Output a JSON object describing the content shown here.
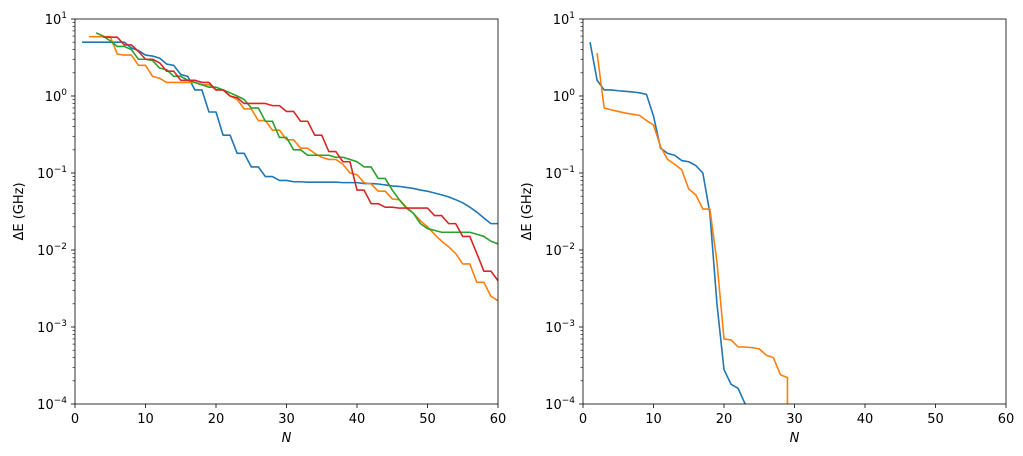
{
  "chart_data": [
    {
      "type": "line",
      "xlabel": "N",
      "ylabel": "ΔE (GHz)",
      "xlim": [
        0,
        60
      ],
      "ylim": [
        0.0001,
        10
      ],
      "yscale": "log",
      "xticks": [
        "0",
        "10",
        "20",
        "30",
        "40",
        "50",
        "60"
      ],
      "yticks": [
        {
          "value": 0.0001,
          "base": "10",
          "exp": "−4"
        },
        {
          "value": 0.001,
          "base": "10",
          "exp": "−3"
        },
        {
          "value": 0.01,
          "base": "10",
          "exp": "−2"
        },
        {
          "value": 0.1,
          "base": "10",
          "exp": "−1"
        },
        {
          "value": 1,
          "base": "10",
          "exp": "0"
        },
        {
          "value": 10,
          "base": "10",
          "exp": "1"
        }
      ],
      "grid": false,
      "series": [
        {
          "color": "#1f77b4",
          "x": [
            1,
            7,
            8,
            9,
            10,
            11,
            12,
            13,
            14,
            15,
            16,
            17,
            18,
            19,
            20,
            21,
            22,
            23,
            24,
            25,
            26,
            27,
            28,
            29,
            30,
            31,
            32,
            33,
            34,
            35,
            36,
            37,
            38,
            39,
            40,
            41,
            42,
            43,
            44,
            45,
            46,
            47,
            48,
            49,
            50,
            51,
            52,
            53,
            54,
            55,
            56,
            57,
            58,
            59,
            60
          ],
          "y": [
            5.0,
            5.0,
            4.2,
            3.9,
            3.4,
            3.3,
            3.1,
            2.6,
            2.5,
            1.9,
            1.8,
            1.2,
            1.2,
            0.62,
            0.62,
            0.31,
            0.31,
            0.18,
            0.18,
            0.12,
            0.12,
            0.09,
            0.09,
            0.08,
            0.08,
            0.077,
            0.077,
            0.076,
            0.076,
            0.076,
            0.076,
            0.076,
            0.075,
            0.075,
            0.075,
            0.073,
            0.073,
            0.072,
            0.07,
            0.068,
            0.067,
            0.065,
            0.063,
            0.06,
            0.058,
            0.055,
            0.052,
            0.049,
            0.045,
            0.041,
            0.036,
            0.031,
            0.026,
            0.022,
            0.022
          ]
        },
        {
          "color": "#ff7f0e",
          "x": [
            2,
            5,
            6,
            7,
            8,
            9,
            10,
            11,
            12,
            13,
            14,
            15,
            16,
            17,
            18,
            19,
            20,
            21,
            22,
            23,
            24,
            25,
            26,
            27,
            28,
            29,
            30,
            31,
            32,
            33,
            34,
            35,
            36,
            37,
            38,
            39,
            40,
            41,
            42,
            43,
            44,
            45,
            46,
            47,
            48,
            49,
            50,
            51,
            52,
            53,
            54,
            55,
            56,
            57,
            58,
            59,
            60
          ],
          "y": [
            5.9,
            5.9,
            3.5,
            3.4,
            3.4,
            2.5,
            2.5,
            1.8,
            1.7,
            1.5,
            1.5,
            1.5,
            1.5,
            1.5,
            1.4,
            1.4,
            1.2,
            1.2,
            1.0,
            0.9,
            0.68,
            0.68,
            0.48,
            0.48,
            0.36,
            0.36,
            0.27,
            0.27,
            0.21,
            0.21,
            0.18,
            0.16,
            0.15,
            0.15,
            0.13,
            0.1,
            0.095,
            0.075,
            0.072,
            0.058,
            0.058,
            0.046,
            0.045,
            0.036,
            0.03,
            0.024,
            0.02,
            0.016,
            0.013,
            0.011,
            0.009,
            0.0066,
            0.0066,
            0.0038,
            0.0038,
            0.0025,
            0.0022
          ]
        },
        {
          "color": "#2ca02c",
          "x": [
            3,
            4,
            5,
            6,
            7,
            8,
            9,
            10,
            11,
            12,
            13,
            14,
            15,
            16,
            17,
            18,
            19,
            20,
            21,
            22,
            23,
            24,
            25,
            26,
            27,
            28,
            29,
            30,
            31,
            32,
            33,
            34,
            35,
            36,
            37,
            38,
            39,
            40,
            41,
            42,
            43,
            44,
            45,
            46,
            47,
            48,
            49,
            50,
            51,
            52,
            53,
            54,
            55,
            56,
            57,
            58,
            59,
            60
          ],
          "y": [
            6.6,
            6.0,
            5.2,
            4.4,
            4.4,
            4.0,
            3.0,
            3.0,
            2.9,
            2.3,
            2.2,
            1.8,
            1.8,
            1.6,
            1.5,
            1.4,
            1.3,
            1.3,
            1.2,
            1.1,
            1.0,
            0.9,
            0.7,
            0.7,
            0.47,
            0.47,
            0.29,
            0.29,
            0.2,
            0.2,
            0.17,
            0.17,
            0.17,
            0.17,
            0.16,
            0.16,
            0.15,
            0.14,
            0.12,
            0.12,
            0.085,
            0.085,
            0.06,
            0.045,
            0.035,
            0.03,
            0.022,
            0.019,
            0.018,
            0.017,
            0.017,
            0.017,
            0.017,
            0.017,
            0.016,
            0.015,
            0.013,
            0.012
          ]
        },
        {
          "color": "#d62728",
          "x": [
            4,
            6,
            7,
            8,
            9,
            10,
            11,
            12,
            13,
            14,
            15,
            16,
            17,
            18,
            19,
            20,
            21,
            22,
            23,
            24,
            25,
            26,
            27,
            28,
            29,
            30,
            31,
            32,
            33,
            34,
            35,
            36,
            37,
            38,
            39,
            40,
            41,
            42,
            43,
            44,
            45,
            46,
            47,
            48,
            49,
            50,
            51,
            52,
            53,
            54,
            55,
            56,
            57,
            58,
            59,
            60
          ],
          "y": [
            5.8,
            5.8,
            4.6,
            4.6,
            3.8,
            3.0,
            3.0,
            2.7,
            2.1,
            2.1,
            1.6,
            1.6,
            1.6,
            1.5,
            1.5,
            1.2,
            1.2,
            1.0,
            0.95,
            0.8,
            0.8,
            0.8,
            0.8,
            0.75,
            0.75,
            0.63,
            0.63,
            0.47,
            0.47,
            0.31,
            0.31,
            0.19,
            0.19,
            0.14,
            0.14,
            0.06,
            0.06,
            0.04,
            0.04,
            0.036,
            0.036,
            0.035,
            0.035,
            0.035,
            0.035,
            0.035,
            0.028,
            0.028,
            0.022,
            0.022,
            0.015,
            0.015,
            0.009,
            0.0053,
            0.0053,
            0.004
          ]
        }
      ]
    },
    {
      "type": "line",
      "xlabel": "N",
      "ylabel": "ΔE (GHz)",
      "xlim": [
        0,
        60
      ],
      "ylim": [
        0.0001,
        10
      ],
      "yscale": "log",
      "xticks": [
        "0",
        "10",
        "20",
        "30",
        "40",
        "50",
        "60"
      ],
      "yticks": [
        {
          "value": 0.0001,
          "base": "10",
          "exp": "−4"
        },
        {
          "value": 0.001,
          "base": "10",
          "exp": "−3"
        },
        {
          "value": 0.01,
          "base": "10",
          "exp": "−2"
        },
        {
          "value": 0.1,
          "base": "10",
          "exp": "−1"
        },
        {
          "value": 1,
          "base": "10",
          "exp": "0"
        },
        {
          "value": 10,
          "base": "10",
          "exp": "1"
        }
      ],
      "grid": false,
      "series": [
        {
          "color": "#1f77b4",
          "x": [
            1,
            2,
            3,
            4,
            5,
            6,
            7,
            8,
            9,
            10,
            11,
            12,
            13,
            14,
            15,
            16,
            17,
            18,
            19,
            20,
            21,
            22,
            23
          ],
          "y": [
            5.0,
            1.6,
            1.2,
            1.2,
            1.17,
            1.15,
            1.13,
            1.1,
            1.05,
            0.55,
            0.21,
            0.18,
            0.17,
            0.145,
            0.14,
            0.125,
            0.1,
            0.03,
            0.002,
            0.00028,
            0.00018,
            0.00016,
            0.0001
          ]
        },
        {
          "color": "#ff7f0e",
          "x": [
            2,
            3,
            4,
            5,
            6,
            7,
            8,
            9,
            10,
            11,
            12,
            13,
            14,
            15,
            16,
            17,
            18,
            19,
            20,
            21,
            22,
            23,
            24,
            25,
            26,
            27,
            28,
            29,
            29
          ],
          "y": [
            3.6,
            0.7,
            0.66,
            0.63,
            0.6,
            0.58,
            0.56,
            0.48,
            0.42,
            0.22,
            0.15,
            0.13,
            0.11,
            0.062,
            0.052,
            0.034,
            0.034,
            0.007,
            0.0007,
            0.00068,
            0.00055,
            0.00055,
            0.00054,
            0.00052,
            0.00043,
            0.0004,
            0.00024,
            0.00022,
            0.0001
          ]
        }
      ]
    }
  ]
}
